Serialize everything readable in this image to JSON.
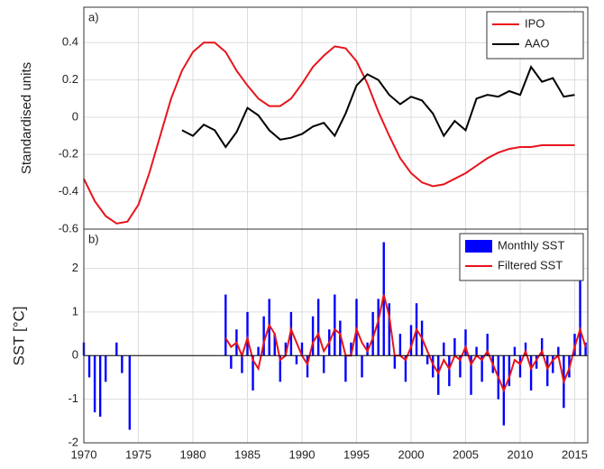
{
  "chart_data": [
    {
      "type": "line",
      "annotation": "a)",
      "y_label": "Standardised units",
      "x": [
        1970,
        1971,
        1972,
        1973,
        1974,
        1975,
        1976,
        1977,
        1978,
        1979,
        1980,
        1981,
        1982,
        1983,
        1984,
        1985,
        1986,
        1987,
        1988,
        1989,
        1990,
        1991,
        1992,
        1993,
        1994,
        1995,
        1996,
        1997,
        1998,
        1999,
        2000,
        2001,
        2002,
        2003,
        2004,
        2005,
        2006,
        2007,
        2008,
        2009,
        2010,
        2011,
        2012,
        2013,
        2014,
        2015
      ],
      "series": [
        {
          "name": "IPO",
          "color": "#e8141c",
          "values": [
            -0.33,
            -0.45,
            -0.53,
            -0.57,
            -0.56,
            -0.47,
            -0.3,
            -0.1,
            0.1,
            0.25,
            0.35,
            0.4,
            0.4,
            0.35,
            0.25,
            0.17,
            0.1,
            0.06,
            0.06,
            0.1,
            0.18,
            0.27,
            0.33,
            0.38,
            0.37,
            0.3,
            0.18,
            0.03,
            -0.1,
            -0.22,
            -0.3,
            -0.35,
            -0.37,
            -0.36,
            -0.33,
            -0.3,
            -0.26,
            -0.22,
            -0.19,
            -0.17,
            -0.16,
            -0.16,
            -0.15,
            -0.15,
            -0.15,
            -0.15
          ]
        },
        {
          "name": "AAO",
          "color": "#000000",
          "values": [
            null,
            null,
            null,
            null,
            null,
            null,
            null,
            null,
            null,
            -0.07,
            -0.1,
            -0.04,
            -0.07,
            -0.16,
            -0.08,
            0.05,
            0.01,
            -0.07,
            -0.12,
            -0.11,
            -0.09,
            -0.05,
            -0.03,
            -0.1,
            0.02,
            0.17,
            0.23,
            0.2,
            0.12,
            0.07,
            0.11,
            0.09,
            0.02,
            -0.1,
            -0.02,
            -0.07,
            0.1,
            0.12,
            0.11,
            0.14,
            0.12,
            0.27,
            0.19,
            0.21,
            0.11,
            0.12
          ]
        }
      ],
      "xlim": [
        1970,
        2016.2
      ],
      "xticks": [
        1970,
        1975,
        1980,
        1985,
        1990,
        1995,
        2000,
        2005,
        2010,
        2015
      ],
      "ylim": [
        -0.6,
        0.59
      ],
      "yticks": [
        -0.6,
        -0.4,
        -0.2,
        0,
        0.2,
        0.4
      ],
      "grid": true,
      "legend": "top-right"
    },
    {
      "type": "bar",
      "annotation": "b)",
      "y_label": "SST [°C]",
      "x": [
        1970,
        1970.5,
        1971,
        1971.5,
        1972,
        1973,
        1973.5,
        1974.2,
        1983,
        1983.5,
        1984,
        1984.5,
        1985,
        1985.5,
        1986,
        1986.5,
        1987,
        1987.5,
        1988,
        1988.5,
        1989,
        1989.5,
        1990,
        1990.5,
        1991,
        1991.5,
        1992,
        1992.5,
        1993,
        1993.5,
        1994,
        1994.5,
        1995,
        1995.5,
        1996,
        1996.5,
        1997,
        1997.5,
        1998,
        1998.5,
        1999,
        1999.5,
        2000,
        2000.5,
        2001,
        2001.5,
        2002,
        2002.5,
        2003,
        2003.5,
        2004,
        2004.5,
        2005,
        2005.5,
        2006,
        2006.5,
        2007,
        2007.5,
        2008,
        2008.5,
        2009,
        2009.5,
        2010,
        2010.5,
        2011,
        2011.5,
        2012,
        2012.5,
        2013,
        2013.5,
        2014,
        2014.5,
        2015,
        2015.5,
        2016
      ],
      "series": [
        {
          "name": "Monthly SST",
          "type": "bar",
          "color": "#0000ff",
          "values": [
            0.3,
            -0.5,
            -1.3,
            -1.4,
            -0.6,
            0.3,
            -0.4,
            -1.7,
            1.4,
            -0.3,
            0.6,
            -0.4,
            1.0,
            -0.8,
            0.2,
            0.9,
            1.3,
            0.5,
            -0.6,
            0.3,
            1.0,
            -0.2,
            0.3,
            -0.5,
            0.9,
            1.3,
            -0.4,
            0.6,
            1.4,
            0.8,
            -0.6,
            0.3,
            1.3,
            -0.5,
            0.3,
            1.0,
            1.3,
            2.6,
            1.2,
            -0.3,
            0.5,
            -0.6,
            0.7,
            1.2,
            0.8,
            -0.2,
            -0.5,
            -0.9,
            0.3,
            -0.7,
            0.4,
            -0.5,
            0.6,
            -0.9,
            0.2,
            -0.6,
            0.5,
            -0.4,
            -1.0,
            -1.6,
            -0.7,
            0.2,
            -0.5,
            0.3,
            -0.8,
            -0.3,
            0.4,
            -0.7,
            -0.4,
            0.2,
            -1.2,
            -0.5,
            0.5,
            1.9,
            0.3
          ]
        },
        {
          "name": "Filtered SST",
          "type": "line",
          "color": "#e8141c",
          "values": [
            null,
            null,
            null,
            null,
            null,
            null,
            null,
            null,
            0.4,
            0.2,
            0.3,
            0.0,
            0.4,
            -0.1,
            -0.3,
            0.3,
            0.7,
            0.5,
            -0.1,
            0.0,
            0.6,
            0.3,
            0.0,
            -0.2,
            0.3,
            0.5,
            0.1,
            0.3,
            0.6,
            0.5,
            0.0,
            0.0,
            0.6,
            0.3,
            0.1,
            0.4,
            0.8,
            1.4,
            0.9,
            0.0,
            0.0,
            -0.1,
            0.2,
            0.6,
            0.4,
            0.1,
            -0.2,
            -0.4,
            -0.1,
            -0.3,
            0.0,
            -0.1,
            0.2,
            -0.2,
            0.0,
            -0.1,
            0.1,
            -0.2,
            -0.5,
            -0.8,
            -0.5,
            -0.1,
            -0.2,
            0.1,
            -0.3,
            -0.1,
            0.1,
            -0.3,
            -0.1,
            0.0,
            -0.6,
            -0.3,
            0.2,
            0.6,
            0.2
          ]
        }
      ],
      "xlim": [
        1970,
        2016.2
      ],
      "xticks": [
        1970,
        1975,
        1980,
        1985,
        1990,
        1995,
        2000,
        2005,
        2010,
        2015
      ],
      "ylim": [
        -2,
        2.9
      ],
      "yticks": [
        -2,
        -1,
        0,
        1,
        2
      ],
      "grid": true,
      "legend": "top-right"
    }
  ]
}
